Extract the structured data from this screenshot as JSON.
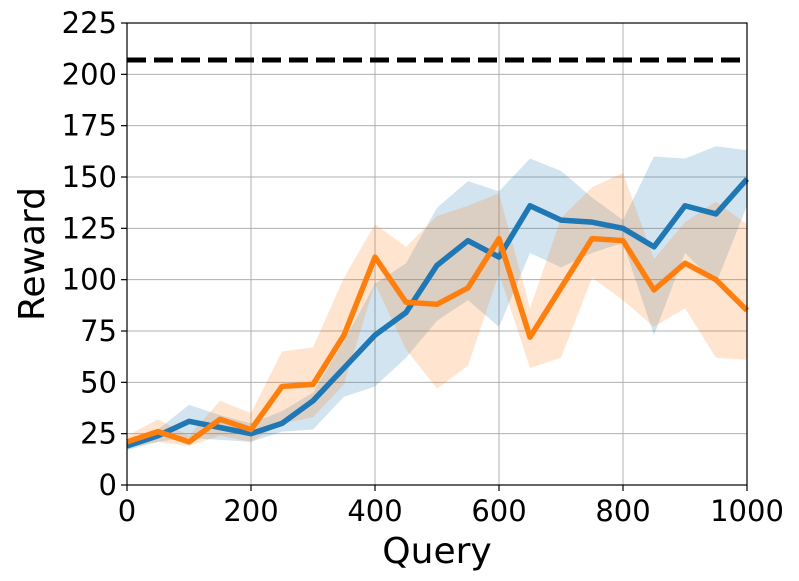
{
  "chart_data": {
    "type": "line",
    "title": "",
    "xlabel": "Query",
    "ylabel": "Reward",
    "xlim": [
      0,
      1000
    ],
    "ylim": [
      0,
      225
    ],
    "xticks": [
      0,
      200,
      400,
      600,
      800,
      1000
    ],
    "yticks": [
      0,
      25,
      50,
      75,
      100,
      125,
      150,
      175,
      200,
      225
    ],
    "grid": true,
    "x": [
      0,
      50,
      100,
      150,
      200,
      250,
      300,
      350,
      400,
      450,
      500,
      550,
      600,
      650,
      700,
      750,
      800,
      850,
      900,
      950,
      1000
    ],
    "series": [
      {
        "color": "#1f77b4",
        "band_color": "#1f77b4",
        "values": [
          19,
          24,
          31,
          28,
          25,
          30,
          41,
          57,
          73,
          84,
          107,
          119,
          111,
          136,
          129,
          128,
          125,
          116,
          136,
          132,
          149
        ],
        "upper": [
          21,
          27,
          39,
          34,
          30,
          36,
          45,
          70,
          98,
          108,
          135,
          148,
          143,
          159,
          153,
          140,
          129,
          160,
          159,
          165,
          163
        ],
        "lower": [
          17,
          21,
          23,
          22,
          21,
          26,
          27,
          43,
          48,
          62,
          80,
          90,
          77,
          113,
          106,
          113,
          118,
          73,
          113,
          98,
          136
        ]
      },
      {
        "color": "#ff7f0e",
        "band_color": "#ff7f0e",
        "values": [
          21,
          26,
          21,
          32,
          27,
          48,
          49,
          73,
          111,
          89,
          88,
          96,
          120,
          72,
          96,
          120,
          119,
          95,
          108,
          100,
          85
        ],
        "upper": [
          24,
          32,
          24,
          41,
          35,
          65,
          67,
          101,
          127,
          116,
          131,
          136,
          142,
          86,
          130,
          145,
          152,
          110,
          128,
          138,
          127
        ],
        "lower": [
          18,
          21,
          19,
          24,
          21,
          30,
          33,
          49,
          98,
          66,
          47,
          58,
          103,
          57,
          62,
          101,
          90,
          77,
          86,
          62,
          61
        ]
      }
    ],
    "reference_line": {
      "y": 207,
      "color": "#000000",
      "style": "dashed"
    }
  }
}
